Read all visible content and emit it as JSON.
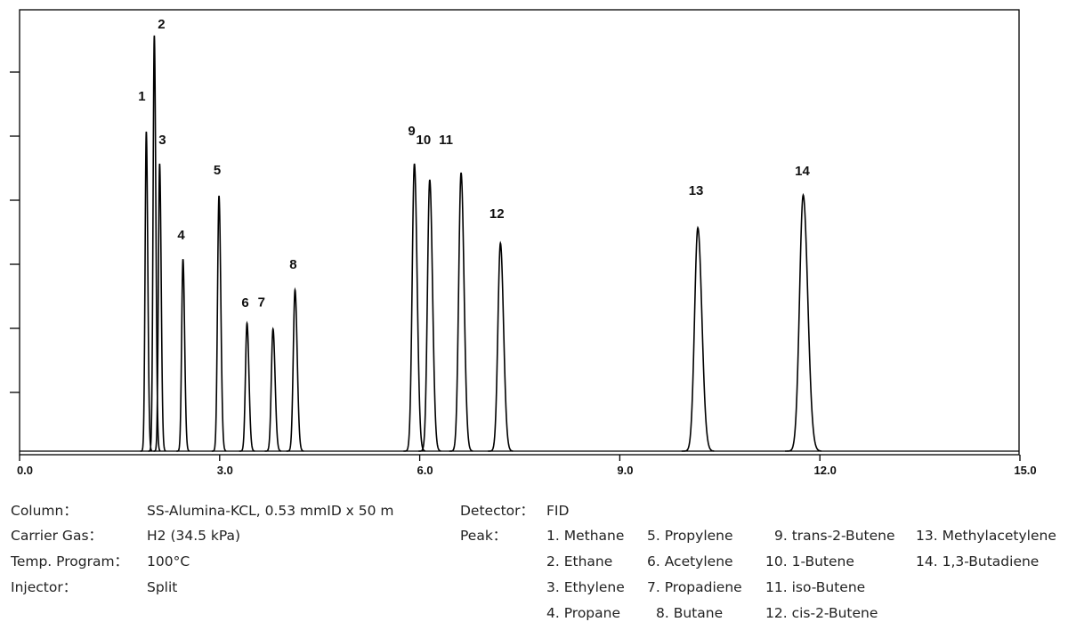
{
  "chart_data": {
    "type": "chromatogram",
    "xlim": [
      0,
      15
    ],
    "xticks": [
      {
        "value": 0,
        "label": "0.0"
      },
      {
        "value": 3,
        "label": "3.0"
      },
      {
        "value": 6,
        "label": "6.0"
      },
      {
        "value": 9,
        "label": "9.0"
      },
      {
        "value": 12,
        "label": "12.0"
      },
      {
        "value": 15,
        "label": "15.0"
      }
    ],
    "ylim": [
      0,
      7
    ],
    "yticks": [
      1,
      2,
      3,
      4,
      5,
      6
    ],
    "color": "#000000",
    "peaks": [
      {
        "label": "1",
        "x": 1.9,
        "height": 5.07
      },
      {
        "label": "2",
        "x": 2.02,
        "height": 6.57
      },
      {
        "label": "3",
        "x": 2.1,
        "height": 4.57
      },
      {
        "label": "4",
        "x": 2.45,
        "height": 3.08
      },
      {
        "label": "5",
        "x": 2.99,
        "height": 4.07
      },
      {
        "label": "6",
        "x": 3.41,
        "height": 2.08
      },
      {
        "label": "7",
        "x": 3.8,
        "height": 1.99
      },
      {
        "label": "8",
        "x": 4.13,
        "height": 2.6
      },
      {
        "label": "9",
        "x": 5.92,
        "height": 4.57
      },
      {
        "label": "10",
        "x": 6.15,
        "height": 4.32
      },
      {
        "label": "11",
        "x": 6.62,
        "height": 4.43
      },
      {
        "label": "12",
        "x": 7.21,
        "height": 3.33
      },
      {
        "label": "13",
        "x": 10.17,
        "height": 3.57
      },
      {
        "label": "14",
        "x": 11.75,
        "height": 4.08
      }
    ]
  },
  "conditions": [
    {
      "label": "Column：",
      "value": "SS-Alumina-KCL, 0.53 mmID x 50 m"
    },
    {
      "label": "Carrier Gas：",
      "value": "H2 (34.5 kPa)"
    },
    {
      "label": "Temp. Program：",
      "value": "100°C"
    },
    {
      "label": "Injector：",
      "value": "Split"
    }
  ],
  "detector": {
    "label": "Detector：",
    "value": "FID"
  },
  "peak_heading": "Peak：",
  "peak_names": [
    "1. Methane",
    "2. Ethane",
    "3. Ethylene",
    "4. Propane",
    "5. Propylene",
    "6. Acetylene",
    "7. Propadiene",
    "8. Butane",
    "9. trans-2-Butene",
    "10. 1-Butene",
    "11. iso-Butene",
    "12. cis-2-Butene",
    "13. Methylacetylene",
    "14. 1,3-Butadiene"
  ]
}
